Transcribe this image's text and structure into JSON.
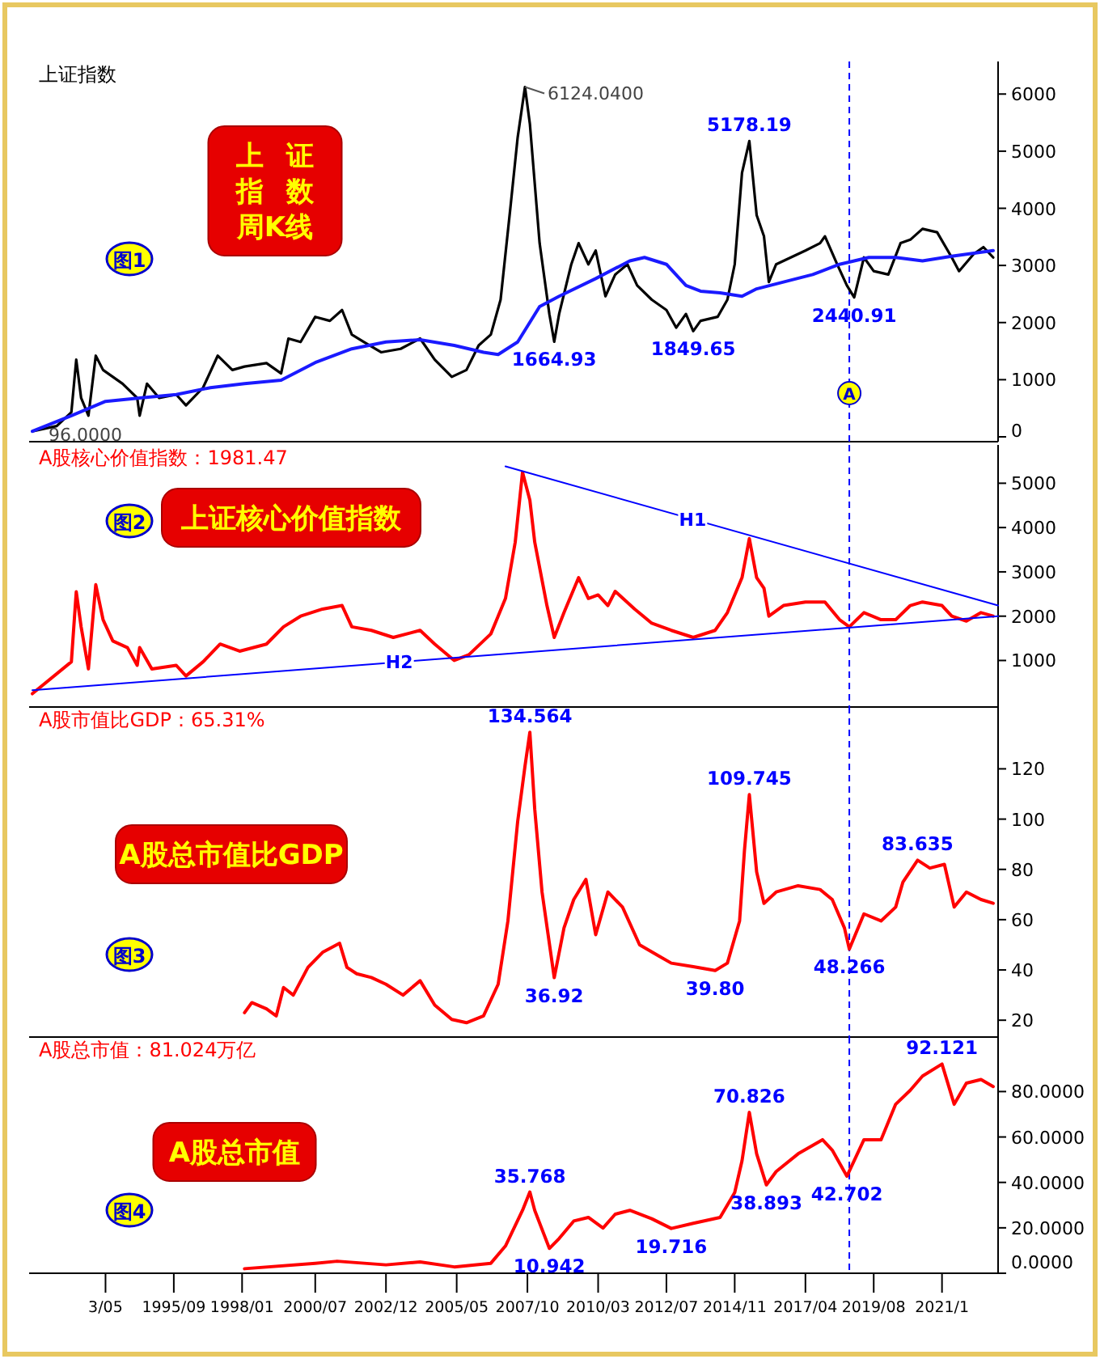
{
  "chart_data": [
    {
      "type": "line",
      "annotations": [
        "上证指数",
        "图1",
        "上证指数周K线",
        {
          "text": "96.0000",
          "x": "1990-11",
          "y": 96
        },
        {
          "text": "6124.0400",
          "x": "2007-09",
          "y": 6124
        },
        {
          "text": "1664.93",
          "x": "2008-09",
          "y": 1665
        },
        {
          "text": "1849.65",
          "x": "2013-06",
          "y": 1850
        },
        {
          "text": "5178.19",
          "x": "2015-05",
          "y": 5178
        },
        {
          "text": "2440.91",
          "x": "2018-12",
          "y": 2441
        }
      ],
      "xlim": [
        "1990-11",
        "2023-11"
      ],
      "ylim": [
        -85,
        6570
      ],
      "yticks": [
        0,
        1000,
        2000,
        3000,
        4000,
        5000,
        6000
      ],
      "tick_labels": "y",
      "ref_lines": [
        {
          "axis": "x",
          "value": "2018-10",
          "label": "A",
          "color": "#0000ff",
          "line_style": "dashed"
        }
      ],
      "series": [
        {
          "color": "#000000",
          "x": [
            "1990-11",
            "1991-09",
            "1992-03",
            "1992-05",
            "1992-07",
            "1992-10",
            "1993-01",
            "1993-04",
            "1993-08",
            "1993-12",
            "1994-06",
            "1994-07",
            "1994-10",
            "1995-03",
            "1995-10",
            "1996-02",
            "1996-09",
            "1997-03",
            "1997-09",
            "1998-02",
            "1998-11",
            "1999-05",
            "1999-08",
            "2000-01",
            "2000-07",
            "2001-01",
            "2001-06",
            "2001-10",
            "2002-03",
            "2002-10",
            "2003-06",
            "2004-02",
            "2004-08",
            "2005-03",
            "2005-09",
            "2006-02",
            "2006-07",
            "2006-11",
            "2007-03",
            "2007-06",
            "2007-09",
            "2007-11",
            "2008-03",
            "2008-07",
            "2008-09",
            "2008-11",
            "2009-04",
            "2009-07",
            "2009-11",
            "2010-02",
            "2010-06",
            "2010-10",
            "2011-03",
            "2011-07",
            "2012-01",
            "2012-07",
            "2012-11",
            "2013-03",
            "2013-06",
            "2013-09",
            "2014-04",
            "2014-08",
            "2014-11",
            "2015-02",
            "2015-05",
            "2015-08",
            "2015-11",
            "2016-01",
            "2016-04",
            "2016-10",
            "2017-04",
            "2017-10",
            "2017-12",
            "2018-05",
            "2018-09",
            "2018-12",
            "2019-04",
            "2019-08",
            "2020-02",
            "2020-07",
            "2020-11",
            "2021-04",
            "2021-10",
            "2022-04",
            "2022-07",
            "2023-01",
            "2023-05",
            "2023-09"
          ],
          "values": [
            96,
            190,
            430,
            1350,
            680,
            370,
            1420,
            1170,
            1050,
            930,
            680,
            370,
            930,
            680,
            740,
            550,
            860,
            1420,
            1170,
            1230,
            1290,
            1110,
            1720,
            1660,
            2100,
            2030,
            2220,
            1790,
            1660,
            1480,
            1540,
            1720,
            1350,
            1050,
            1170,
            1600,
            1790,
            2400,
            4000,
            5240,
            6124,
            5480,
            3390,
            2150,
            1665,
            2150,
            3020,
            3390,
            3020,
            3260,
            2460,
            2840,
            3020,
            2650,
            2400,
            2220,
            1910,
            2150,
            1850,
            2030,
            2100,
            2400,
            3020,
            4620,
            5178,
            3880,
            3510,
            2710,
            3020,
            3140,
            3260,
            3390,
            3510,
            3020,
            2650,
            2441,
            3140,
            2900,
            2840,
            3390,
            3450,
            3640,
            3580,
            3140,
            2900,
            3200,
            3320,
            3140
          ]
        },
        {
          "color": "#1a1aff",
          "x": [
            "1990-11",
            "1992-03",
            "1993-05",
            "1994-07",
            "1995-10",
            "1996-12",
            "1998-02",
            "1999-05",
            "2000-07",
            "2001-10",
            "2002-12",
            "2004-02",
            "2005-04",
            "2006-04",
            "2006-10",
            "2007-06",
            "2008-03",
            "2008-11",
            "2010-02",
            "2011-04",
            "2011-10",
            "2012-07",
            "2013-03",
            "2013-09",
            "2014-05",
            "2015-02",
            "2015-08",
            "2016-07",
            "2017-07",
            "2018-06",
            "2019-06",
            "2020-05",
            "2021-04",
            "2022-04",
            "2023-09"
          ],
          "values": [
            96,
            370,
            620,
            680,
            740,
            860,
            930,
            990,
            1300,
            1540,
            1660,
            1700,
            1600,
            1480,
            1440,
            1660,
            2280,
            2460,
            2770,
            3080,
            3140,
            3020,
            2650,
            2550,
            2520,
            2460,
            2590,
            2710,
            2840,
            3020,
            3140,
            3140,
            3080,
            3160,
            3260
          ]
        }
      ]
    },
    {
      "type": "line",
      "annotations": [
        "A股核心价值指数：1981.47",
        "图2",
        "上证核心价值指数"
      ],
      "xlim": [
        "1990-11",
        "2023-11"
      ],
      "ylim": [
        -50,
        5865
      ],
      "yticks": [
        1000,
        2000,
        3000,
        4000,
        5000
      ],
      "tick_labels": "y",
      "ref_lines": [
        {
          "axis": "x",
          "value": "2018-10",
          "color": "#0000ff",
          "line_style": "dashed"
        }
      ],
      "series": [
        {
          "color": "#ff0000",
          "x": [
            "1990-11",
            "1992-03",
            "1992-05",
            "1992-07",
            "1992-10",
            "1993-01",
            "1993-04",
            "1993-08",
            "1994-02",
            "1994-06",
            "1994-07",
            "1994-12",
            "1995-10",
            "1996-02",
            "1996-09",
            "1997-04",
            "1997-12",
            "1998-11",
            "1999-06",
            "2000-01",
            "2000-10",
            "2001-06",
            "2001-10",
            "2002-06",
            "2003-03",
            "2004-02",
            "2004-08",
            "2005-04",
            "2005-10",
            "2006-07",
            "2007-01",
            "2007-05",
            "2007-08",
            "2007-11",
            "2008-01",
            "2008-06",
            "2008-09",
            "2009-01",
            "2009-07",
            "2009-11",
            "2010-03",
            "2010-07",
            "2010-10",
            "2011-06",
            "2012-01",
            "2012-09",
            "2013-06",
            "2014-03",
            "2014-08",
            "2015-02",
            "2015-05",
            "2015-08",
            "2015-11",
            "2016-01",
            "2016-07",
            "2017-04",
            "2017-12",
            "2018-06",
            "2018-10",
            "2019-04",
            "2019-11",
            "2020-05",
            "2020-11",
            "2021-04",
            "2021-12",
            "2022-04",
            "2022-10",
            "2023-04",
            "2023-09"
          ],
          "values": [
            250,
            970,
            2550,
            1760,
            810,
            2710,
            1920,
            1440,
            1290,
            890,
            1290,
            810,
            890,
            650,
            970,
            1370,
            1210,
            1370,
            1760,
            2000,
            2160,
            2240,
            1760,
            1680,
            1520,
            1680,
            1370,
            1000,
            1130,
            1600,
            2400,
            3670,
            5250,
            4620,
            3670,
            2240,
            1520,
            2080,
            2870,
            2400,
            2480,
            2240,
            2560,
            2160,
            1840,
            1680,
            1520,
            1680,
            2080,
            2870,
            3750,
            2870,
            2630,
            2000,
            2240,
            2320,
            2320,
            1920,
            1760,
            2080,
            1920,
            1920,
            2240,
            2320,
            2240,
            2000,
            1890,
            2080,
            2000
          ]
        },
        {
          "name": "H1",
          "color": "#0000ff",
          "x": [
            "2007-01",
            "2023-11"
          ],
          "values": [
            5380,
            2240
          ]
        },
        {
          "name": "H2",
          "color": "#0000ff",
          "x": [
            "1990-11",
            "2023-11"
          ],
          "values": [
            330,
            2000
          ]
        }
      ]
    },
    {
      "type": "line",
      "annotations": [
        "A股市值比GDP：65.31%",
        "图3",
        "A股总市值比GDP",
        {
          "text": "134.564",
          "x": "2007-11",
          "y": 134.564
        },
        {
          "text": "36.92",
          "x": "2008-09",
          "y": 36.92
        },
        {
          "text": "39.80",
          "x": "2014-03",
          "y": 39.8
        },
        {
          "text": "109.745",
          "x": "2015-05",
          "y": 109.745
        },
        {
          "text": "48.266",
          "x": "2018-10",
          "y": 48.266
        },
        {
          "text": "83.635",
          "x": "2021-02",
          "y": 83.635
        }
      ],
      "xlim": [
        "1990-11",
        "2023-11"
      ],
      "ylim": [
        13.3,
        144.6
      ],
      "yticks": [
        20,
        40,
        60,
        80,
        100,
        120
      ],
      "tick_labels": "y",
      "ref_lines": [
        {
          "axis": "x",
          "value": "2018-10",
          "color": "#0000ff",
          "line_style": "dashed"
        }
      ],
      "series": [
        {
          "color": "#ff0000",
          "x": [
            "1998-02",
            "1998-05",
            "1998-11",
            "1999-03",
            "1999-06",
            "1999-10",
            "2000-04",
            "2000-10",
            "2001-05",
            "2001-08",
            "2001-12",
            "2002-06",
            "2002-12",
            "2003-07",
            "2004-02",
            "2004-08",
            "2005-03",
            "2005-09",
            "2006-04",
            "2006-10",
            "2007-02",
            "2007-06",
            "2007-09",
            "2007-11",
            "2008-01",
            "2008-04",
            "2008-09",
            "2009-01",
            "2009-05",
            "2009-10",
            "2010-02",
            "2010-07",
            "2011-01",
            "2011-08",
            "2012-04",
            "2012-09",
            "2013-06",
            "2014-03",
            "2014-08",
            "2015-01",
            "2015-03",
            "2015-05",
            "2015-08",
            "2015-11",
            "2016-04",
            "2017-01",
            "2017-10",
            "2018-03",
            "2018-08",
            "2018-10",
            "2019-04",
            "2019-11",
            "2020-05",
            "2020-08",
            "2021-02",
            "2021-07",
            "2022-01",
            "2022-05",
            "2022-10",
            "2023-04",
            "2023-09"
          ],
          "values": [
            23,
            27,
            24.5,
            21.7,
            33,
            30,
            41,
            47,
            50.6,
            41,
            38.5,
            37,
            34.3,
            30,
            35.7,
            26,
            20.3,
            19,
            21.7,
            34.3,
            59.5,
            99,
            121,
            134.564,
            104,
            71,
            36.92,
            56.7,
            68,
            76,
            54,
            71,
            65,
            50,
            45.5,
            42.7,
            41.3,
            39.8,
            42.7,
            59.5,
            87.5,
            109.745,
            79,
            66.5,
            71,
            73.5,
            72,
            68,
            56.7,
            48.266,
            62.3,
            59.5,
            65,
            75,
            83.635,
            80.5,
            82,
            65,
            71,
            68,
            66.5
          ]
        }
      ]
    },
    {
      "type": "line",
      "annotations": [
        "A股总市值：81.024万亿",
        "图4",
        "A股总市值",
        {
          "text": "35.768",
          "x": "2007-11",
          "y": 35.768
        },
        {
          "text": "10.942",
          "x": "2008-07",
          "y": 10.942
        },
        {
          "text": "19.716",
          "x": "2012-09",
          "y": 19.716
        },
        {
          "text": "70.826",
          "x": "2015-05",
          "y": 70.826
        },
        {
          "text": "38.893",
          "x": "2015-12",
          "y": 38.893
        },
        {
          "text": "42.702",
          "x": "2018-09",
          "y": 42.702
        },
        {
          "text": "92.121",
          "x": "2021-12",
          "y": 92.121
        }
      ],
      "xlim": [
        "1990-11",
        "2023-11"
      ],
      "ylim": [
        0,
        104
      ],
      "yticks": [
        {
          "value": 0,
          "label": "0.0000"
        },
        {
          "value": 20,
          "label": "20.0000"
        },
        {
          "value": 40,
          "label": "40.0000"
        },
        {
          "value": 60,
          "label": "60.0000"
        },
        {
          "value": 80,
          "label": "80.0000"
        }
      ],
      "xticks": [
        {
          "value": "1993-05",
          "label": "3/05"
        },
        {
          "value": "1995-09",
          "label": "1995/09"
        },
        {
          "value": "1998-01",
          "label": "1998/01"
        },
        {
          "value": "2000-07",
          "label": "2000/07"
        },
        {
          "value": "2002-12",
          "label": "2002/12"
        },
        {
          "value": "2005-05",
          "label": "2005/05"
        },
        {
          "value": "2007-10",
          "label": "2007/10"
        },
        {
          "value": "2010-03",
          "label": "2010/03"
        },
        {
          "value": "2012-07",
          "label": "2012/07"
        },
        {
          "value": "2014-11",
          "label": "2014/11"
        },
        {
          "value": "2017-04",
          "label": "2017/04"
        },
        {
          "value": "2019-08",
          "label": "2019/08"
        },
        {
          "value": "2021-12",
          "label": "2021/1"
        }
      ],
      "ref_lines": [
        {
          "axis": "x",
          "value": "2018-10",
          "color": "#0000ff",
          "line_style": "dashed"
        }
      ],
      "series": [
        {
          "color": "#ff0000",
          "x": [
            "1998-02",
            "2000-07",
            "2001-04",
            "2002-12",
            "2004-02",
            "2005-04",
            "2006-07",
            "2007-01",
            "2007-08",
            "2007-11",
            "2008-01",
            "2008-07",
            "2008-11",
            "2009-05",
            "2009-11",
            "2010-05",
            "2010-10",
            "2011-04",
            "2012-01",
            "2012-09",
            "2013-06",
            "2014-05",
            "2014-11",
            "2015-02",
            "2015-05",
            "2015-08",
            "2015-12",
            "2016-04",
            "2017-01",
            "2017-11",
            "2018-03",
            "2018-09",
            "2019-04",
            "2019-11",
            "2020-05",
            "2020-11",
            "2021-04",
            "2021-12",
            "2022-05",
            "2022-10",
            "2023-04",
            "2023-09"
          ],
          "values": [
            2,
            4.4,
            5.3,
            3.7,
            5,
            2.8,
            4.4,
            12,
            27.7,
            35.768,
            27.7,
            10.942,
            15.3,
            23,
            24.6,
            19.9,
            26,
            27.7,
            24,
            19.716,
            22,
            24.6,
            35.5,
            49.5,
            70.826,
            52.6,
            38.893,
            44.8,
            52.6,
            58.8,
            54.2,
            42.702,
            58.8,
            58.8,
            74.4,
            80.6,
            86.8,
            92.121,
            74.4,
            83.7,
            85.3,
            82.2
          ]
        }
      ]
    }
  ]
}
